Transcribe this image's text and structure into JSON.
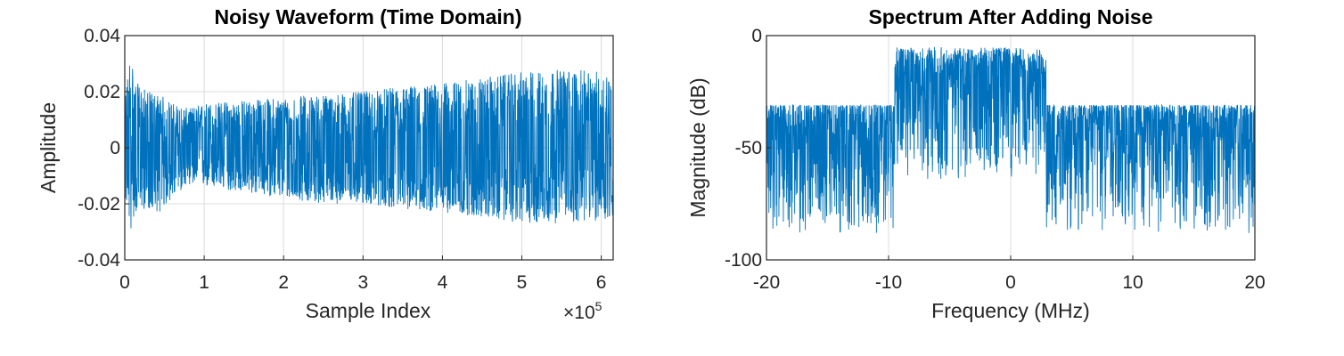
{
  "chart_data": [
    {
      "type": "line",
      "title": "Noisy Waveform (Time Domain)",
      "xlabel": "Sample Index",
      "ylabel": "Amplitude",
      "x_exponent_label": "×10^5",
      "x_exponent_base": "×10",
      "x_exponent_power": "5",
      "xlim": [
        0,
        6.15
      ],
      "ylim": [
        -0.04,
        0.04
      ],
      "x_unit_note": "x values in units of 10^5 samples",
      "xticks": [
        0,
        1,
        2,
        3,
        4,
        5,
        6
      ],
      "xtick_labels": [
        "0",
        "1",
        "2",
        "3",
        "4",
        "5",
        "6"
      ],
      "yticks": [
        -0.04,
        -0.02,
        0,
        0.02,
        0.04
      ],
      "ytick_labels": [
        "-0.04",
        "-0.02",
        "0",
        "0.02",
        "0.04"
      ],
      "grid": true,
      "color": "#0072BD",
      "envelope": {
        "x": [
          0,
          0.08,
          0.12,
          0.2,
          0.3,
          0.45,
          0.6,
          0.8,
          1.0,
          1.5,
          2.0,
          2.5,
          3.0,
          3.5,
          4.0,
          4.5,
          5.0,
          5.5,
          6.15
        ],
        "upper": [
          0.018,
          0.036,
          0.024,
          0.022,
          0.02,
          0.019,
          0.016,
          0.014,
          0.016,
          0.017,
          0.018,
          0.019,
          0.02,
          0.022,
          0.023,
          0.025,
          0.027,
          0.028,
          0.027
        ],
        "lower": [
          -0.018,
          -0.03,
          -0.024,
          -0.022,
          -0.022,
          -0.023,
          -0.018,
          -0.013,
          -0.014,
          -0.016,
          -0.018,
          -0.02,
          -0.02,
          -0.022,
          -0.023,
          -0.025,
          -0.027,
          -0.027,
          -0.026
        ]
      }
    },
    {
      "type": "line",
      "title": "Spectrum After Adding Noise",
      "xlabel": "Frequency (MHz)",
      "ylabel": "Magnitude (dB)",
      "xlim": [
        -20,
        20
      ],
      "ylim": [
        -100,
        0
      ],
      "xticks": [
        -20,
        -10,
        0,
        10,
        20
      ],
      "xtick_labels": [
        "-20",
        "-10",
        "0",
        "10",
        "20"
      ],
      "yticks": [
        -100,
        -50,
        0
      ],
      "ytick_labels": [
        "-100",
        "-50",
        "0"
      ],
      "grid": true,
      "color": "#0072BD",
      "signal_band": [
        -9.5,
        2.9
      ],
      "levels": {
        "out_of_band_top": -31,
        "out_of_band_bottom": -88,
        "in_band_top": -5,
        "in_band_bottom": -62
      }
    }
  ]
}
